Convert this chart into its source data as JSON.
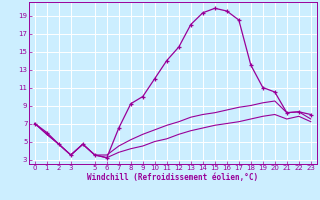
{
  "xlabel": "Windchill (Refroidissement éolien,°C)",
  "background_color": "#cceeff",
  "line_color": "#990099",
  "hours": [
    0,
    1,
    2,
    3,
    4,
    5,
    6,
    7,
    8,
    9,
    10,
    11,
    12,
    13,
    14,
    15,
    16,
    17,
    18,
    19,
    20,
    21,
    22,
    23
  ],
  "windchill": [
    7,
    6,
    4.7,
    3.5,
    4.7,
    3.5,
    3.2,
    6.5,
    9.2,
    10,
    12,
    14,
    15.5,
    18,
    19.3,
    19.8,
    19.5,
    18.5,
    13.5,
    11,
    10.5,
    8.2,
    8.3,
    8
  ],
  "line2": [
    7,
    5.8,
    4.7,
    3.5,
    4.7,
    3.5,
    3.2,
    3.8,
    4.2,
    4.5,
    5.0,
    5.3,
    5.8,
    6.2,
    6.5,
    6.8,
    7.0,
    7.2,
    7.5,
    7.8,
    8.0,
    7.5,
    7.8,
    7.2
  ],
  "line3": [
    7,
    5.8,
    4.7,
    3.5,
    4.7,
    3.5,
    3.5,
    4.5,
    5.2,
    5.8,
    6.3,
    6.8,
    7.2,
    7.7,
    8.0,
    8.2,
    8.5,
    8.8,
    9.0,
    9.3,
    9.5,
    8.2,
    8.3,
    7.5
  ],
  "ylim": [
    2.5,
    20.5
  ],
  "yticks": [
    3,
    5,
    7,
    9,
    11,
    13,
    15,
    17,
    19
  ],
  "xlim": [
    -0.5,
    23.5
  ],
  "xticks": [
    0,
    1,
    2,
    3,
    5,
    6,
    7,
    8,
    9,
    10,
    11,
    12,
    13,
    14,
    15,
    16,
    17,
    18,
    19,
    20,
    21,
    22,
    23
  ]
}
